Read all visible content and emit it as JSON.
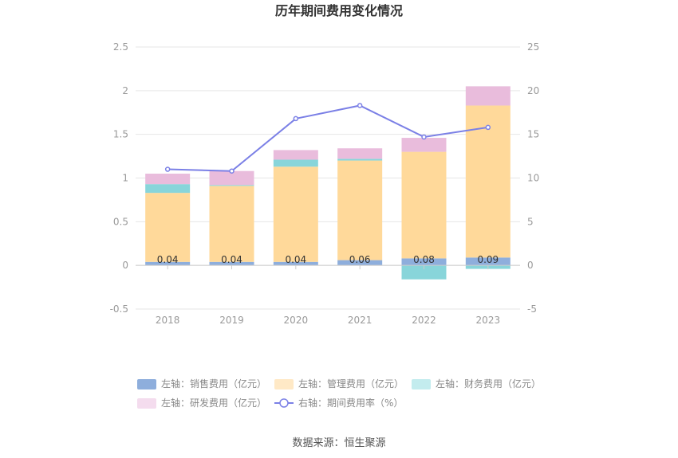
{
  "chart_data": {
    "type": "bar",
    "title": "历年期间费用变化情况",
    "categories": [
      "2018",
      "2019",
      "2020",
      "2021",
      "2022",
      "2023"
    ],
    "stacked": true,
    "y_left": {
      "ylim": [
        -0.5,
        2.5
      ],
      "ticks": [
        "-0.5",
        "0",
        "0.5",
        "1",
        "1.5",
        "2",
        "2.5"
      ]
    },
    "y_right": {
      "ylim": [
        -5,
        25
      ],
      "ticks": [
        "-5",
        "0",
        "5",
        "10",
        "15",
        "20",
        "25"
      ]
    },
    "grid": true,
    "legend_position": "bottom",
    "series": [
      {
        "name": "左轴：销售费用（亿元）",
        "axis": "left",
        "type": "bar",
        "color": "#8eaedc",
        "legend_color": "#8eaedc",
        "values": [
          0.04,
          0.04,
          0.04,
          0.06,
          0.08,
          0.09
        ],
        "labels": [
          "0.04",
          "0.04",
          "0.04",
          "0.06",
          "0.08",
          "0.09"
        ]
      },
      {
        "name": "左轴：管理费用（亿元）",
        "axis": "left",
        "type": "bar",
        "color": "#ffd99a",
        "legend_color": "#ffe9c6",
        "values": [
          0.79,
          0.87,
          1.09,
          1.14,
          1.22,
          1.74
        ]
      },
      {
        "name": "左轴：财务费用（亿元）",
        "axis": "left",
        "type": "bar",
        "color": "#88d5da",
        "legend_color": "#c3ecee",
        "values": [
          0.1,
          0.01,
          0.08,
          0.02,
          -0.16,
          -0.04
        ]
      },
      {
        "name": "左轴：研发费用（亿元）",
        "axis": "left",
        "type": "bar",
        "color": "#e9bcdc",
        "legend_color": "#f4dcee",
        "values": [
          0.12,
          0.16,
          0.11,
          0.12,
          0.16,
          0.22
        ]
      },
      {
        "name": "右轴：期间费用率（%）",
        "axis": "right",
        "type": "line",
        "color": "#7b80e6",
        "values": [
          11.0,
          10.8,
          16.8,
          18.3,
          14.7,
          15.8
        ]
      }
    ],
    "source": "数据来源：恒生聚源"
  }
}
